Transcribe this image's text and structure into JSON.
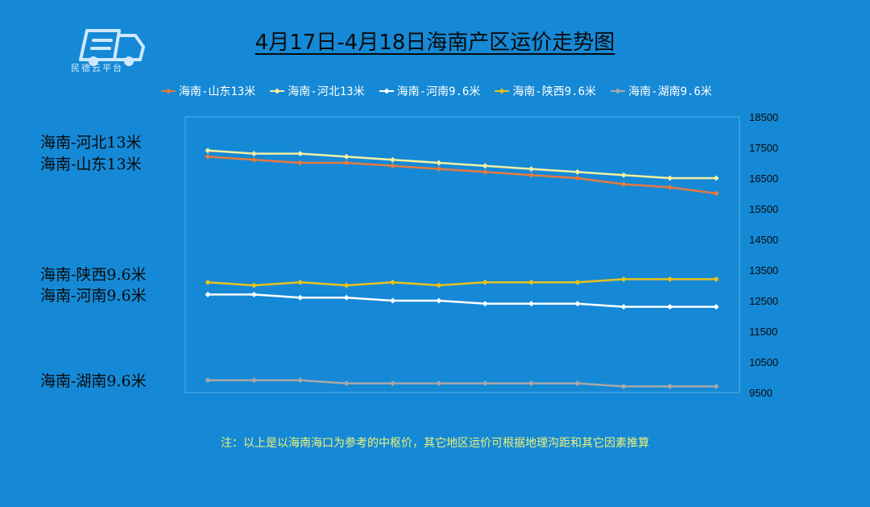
{
  "logo": {
    "icon": "truck-icon",
    "text": "民德云平台"
  },
  "title": "4月17日-4月18日海南产区运价走势图",
  "note": "注：以上是以海南海口为参考的中枢价，其它地区运价可根据地理沟距和其它因素推算",
  "side_labels": {
    "hebei13": "海南-河北13米",
    "shandong13": "海南-山东13米",
    "shaanxi96": "海南-陕西9.6米",
    "henan96": "海南-河南9.6米",
    "hunan96": "海南-湖南9.6米"
  },
  "colors": {
    "background": "#1589d6",
    "grid": "#55aee8"
  },
  "chart_data": {
    "type": "line",
    "title": "4月17日-4月18日海南产区运价走势图",
    "xlabel": "",
    "ylabel": "",
    "x": [
      1,
      2,
      3,
      4,
      5,
      6,
      7,
      8,
      9,
      10,
      11,
      12
    ],
    "ylim": [
      9500,
      18500
    ],
    "yticks": [
      9500,
      10500,
      11500,
      12500,
      13500,
      14500,
      15500,
      16500,
      17500,
      18500
    ],
    "legend_position": "top",
    "grid": false,
    "series": [
      {
        "name": "海南-山东13米",
        "color": "#e8793c",
        "values": [
          17200,
          17100,
          17000,
          17000,
          16900,
          16800,
          16700,
          16600,
          16500,
          16300,
          16200,
          16000
        ]
      },
      {
        "name": "海南-河北13米",
        "color": "#f3f0a0",
        "values": [
          17400,
          17300,
          17300,
          17200,
          17100,
          17000,
          16900,
          16800,
          16700,
          16600,
          16500,
          16500
        ]
      },
      {
        "name": "海南-河南9.6米",
        "color": "#ffffff",
        "values": [
          12700,
          12700,
          12600,
          12600,
          12500,
          12500,
          12400,
          12400,
          12400,
          12300,
          12300,
          12300
        ]
      },
      {
        "name": "海南-陕西9.6米",
        "color": "#e8c21a",
        "values": [
          13100,
          13000,
          13100,
          13000,
          13100,
          13000,
          13100,
          13100,
          13100,
          13200,
          13200,
          13200
        ]
      },
      {
        "name": "海南-湖南9.6米",
        "color": "#a8a8a8",
        "values": [
          9900,
          9900,
          9900,
          9800,
          9800,
          9800,
          9800,
          9800,
          9800,
          9700,
          9700,
          9700
        ]
      }
    ]
  }
}
